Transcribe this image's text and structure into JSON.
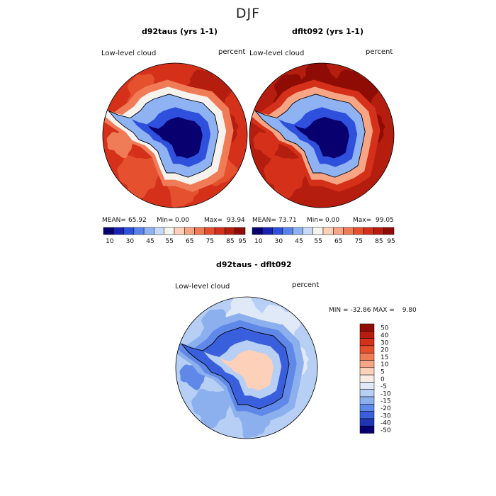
{
  "suptitle": "DJF",
  "panels": [
    {
      "title": "d92taus (yrs 1-1)",
      "left_label": "Low-level cloud",
      "right_label": "percent",
      "stats": {
        "mean_label": "MEAN=",
        "mean": "65.92",
        "min_label": "Min=",
        "min": "0.00",
        "max_label": "Max=",
        "max": "93.94"
      }
    },
    {
      "title": "dflt092 (yrs 1-1)",
      "left_label": "Low-level cloud",
      "right_label": "percent",
      "stats": {
        "mean_label": "MEAN=",
        "mean": "73.71",
        "min_label": "Min=",
        "min": "0.00",
        "max_label": "Max=",
        "max": "99.05"
      }
    },
    {
      "title": "d92taus - dflt092",
      "left_label": "Low-level cloud",
      "right_label": "percent",
      "stats": {
        "min_label": "MIN =",
        "min": "-32.86",
        "max_label": "MAX =",
        "max": "9.80"
      }
    }
  ],
  "chart_data": [
    {
      "type": "heatmap",
      "projection": "south polar stereographic",
      "title": "d92taus (yrs 1-1)",
      "variable": "Low-level cloud",
      "units": "percent",
      "mean": 65.92,
      "min": 0.0,
      "max": 93.94,
      "colorbar_ticks": [
        "10",
        "30",
        "45",
        "55",
        "65",
        "75",
        "85",
        "95"
      ],
      "colorbar_colors": [
        "#08006e",
        "#1a22b4",
        "#2f50dc",
        "#5a82ec",
        "#8fb2f2",
        "#c7dbf8",
        "#f6f2ee",
        "#fcd0b9",
        "#f7a585",
        "#f07b57",
        "#e5502f",
        "#d4301a",
        "#b51d0e",
        "#8f0c05"
      ],
      "fields": {
        "antarctica_interior": "0-10",
        "coastal_margin": "30-55",
        "southern_ocean": "75-95"
      }
    },
    {
      "type": "heatmap",
      "projection": "south polar stereographic",
      "title": "dflt092 (yrs 1-1)",
      "variable": "Low-level cloud",
      "units": "percent",
      "mean": 73.71,
      "min": 0.0,
      "max": 99.05,
      "colorbar_ticks": [
        "10",
        "30",
        "45",
        "55",
        "65",
        "75",
        "85",
        "95"
      ],
      "colorbar_colors": [
        "#08006e",
        "#1a22b4",
        "#2f50dc",
        "#5a82ec",
        "#8fb2f2",
        "#c7dbf8",
        "#f6f2ee",
        "#fcd0b9",
        "#f7a585",
        "#f07b57",
        "#e5502f",
        "#d4301a",
        "#b51d0e",
        "#8f0c05"
      ],
      "fields": {
        "antarctica_interior": "0-10",
        "coastal_margin": "30-55",
        "southern_ocean": "85-99"
      }
    },
    {
      "type": "heatmap",
      "projection": "south polar stereographic",
      "title": "d92taus - dflt092",
      "variable": "Low-level cloud",
      "units": "percent",
      "min": -32.86,
      "max": 9.8,
      "colorbar_ticks": [
        "50",
        "40",
        "30",
        "20",
        "15",
        "10",
        "5",
        "0",
        "-5",
        "-10",
        "-15",
        "-20",
        "-30",
        "-40",
        "-50"
      ],
      "colorbar_colors": [
        "#8f0c05",
        "#b51d0e",
        "#d4301a",
        "#e5502f",
        "#f07b57",
        "#f7a585",
        "#fcd0b9",
        "#f6ece4",
        "#dfe9f7",
        "#b7cff4",
        "#8cb0ee",
        "#5f88e8",
        "#3a5fdc",
        "#1d36b4",
        "#08006e"
      ],
      "fields": {
        "antarctica_interior": "0 to 5",
        "ocean_background": "-5 to -10",
        "coastal_margin": "-15 to -30"
      }
    }
  ]
}
